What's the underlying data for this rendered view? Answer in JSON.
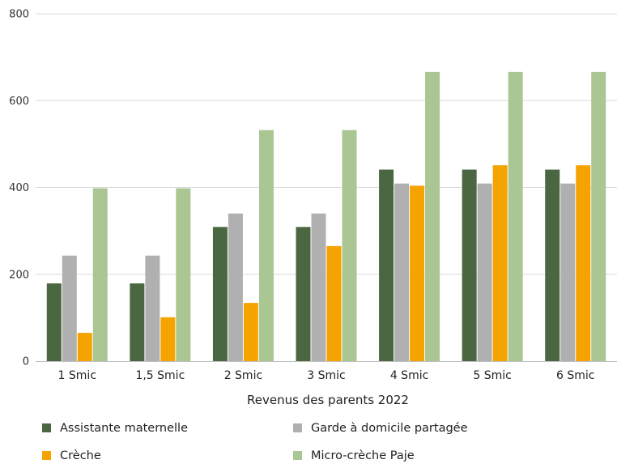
{
  "chart_data": {
    "type": "bar",
    "xlabel": "Revenus des parents 2022",
    "ylabel": "",
    "ylim": [
      0,
      800
    ],
    "yticks": [
      0,
      200,
      400,
      600,
      800
    ],
    "grid": true,
    "legend_position": "bottom",
    "categories": [
      "1 Smic",
      "1,5 Smic",
      "2 Smic",
      "3 Smic",
      "4 Smic",
      "5 Smic",
      "6 Smic"
    ],
    "series": [
      {
        "name": "Assistante maternelle",
        "color": "#4a6741",
        "values": [
          179,
          179,
          309,
          309,
          441,
          441,
          441
        ]
      },
      {
        "name": "Garde à domicile partagée",
        "color": "#b0b0b0",
        "values": [
          243,
          243,
          340,
          340,
          409,
          409,
          409
        ]
      },
      {
        "name": "Crèche",
        "color": "#f5a300",
        "values": [
          65,
          101,
          134,
          265,
          404,
          451,
          451
        ]
      },
      {
        "name": "Micro-crèche Paje",
        "color": "#a9c693",
        "values": [
          398,
          398,
          532,
          532,
          666,
          666,
          666
        ]
      }
    ]
  }
}
